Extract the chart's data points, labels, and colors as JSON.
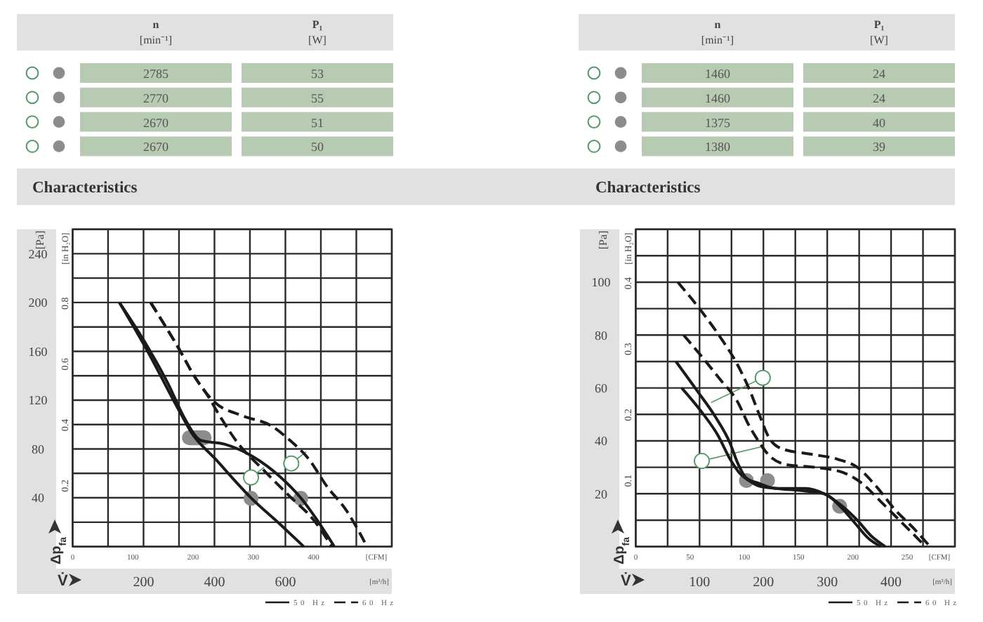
{
  "chart_data": [
    {
      "type": "other",
      "categories": [
        "n [min⁻¹]",
        "P₁ [W]"
      ],
      "annotations": [
        "2785",
        "53",
        "2770",
        "55",
        "2670",
        "51",
        "2670",
        "50"
      ]
    },
    {
      "type": "other",
      "categories": [
        "n [min⁻¹]",
        "P₁ [W]"
      ],
      "annotations": [
        "1460",
        "24",
        "1460",
        "24",
        "1375",
        "40",
        "1380",
        "39"
      ]
    },
    {
      "type": "line",
      "title": "Characteristics",
      "xlabel": "[m³/h]",
      "x2label": "[CFM]",
      "ylabel": "[Pa]",
      "y2label": "[in H₂O]",
      "annotations": [
        "Δp$_{fa}$",
        "V̇"
      ],
      "series": [
        {
          "name": "50 Hz",
          "color": "#1a1a1a",
          "line_style": "solid",
          "x": [
            132,
            204,
            303,
            336,
            402,
            503,
            586,
            652
          ],
          "values": [
            200,
            164,
            110,
            93,
            72,
            40,
            18,
            0
          ]
        },
        {
          "color": "#1a1a1a",
          "line_style": "solid",
          "x": [
            132,
            211,
            270,
            316,
            362,
            428,
            507,
            586,
            643,
            705,
            738
          ],
          "values": [
            200,
            164,
            133,
            105,
            87,
            84,
            74,
            57,
            40,
            15,
            0
          ]
        },
        {
          "name": "60 Hz",
          "color": "#1a1a1a",
          "line_style": "dashed",
          "x": [
            220,
            296,
            349,
            376,
            415,
            468,
            534,
            613,
            679,
            731
          ],
          "values": [
            200,
            164,
            137,
            126,
            107,
            84,
            64,
            41,
            22,
            0
          ]
        },
        {
          "color": "#1a1a1a",
          "line_style": "dashed",
          "x": [
            220,
            296,
            349,
            376,
            402,
            481,
            560,
            613,
            665,
            718,
            771,
            810,
            830
          ],
          "values": [
            200,
            164,
            137,
            126,
            118,
            107,
            99,
            87,
            72,
            49,
            30,
            11,
            0
          ]
        }
      ],
      "xlim": [
        0,
        900
      ],
      "xticks": [
        {
          "value": 0,
          "label": null
        },
        {
          "value": 100,
          "label": null
        },
        200,
        {
          "value": 300,
          "label": null
        },
        400,
        {
          "value": 500,
          "label": null
        },
        600,
        {
          "value": 700,
          "label": null
        },
        {
          "value": 800,
          "label": null
        },
        {
          "value": 900,
          "label": null
        }
      ],
      "x2lim": [
        0,
        530
      ],
      "x2ticks": [
        0,
        100,
        200,
        300,
        400
      ],
      "ylim": [
        0,
        260
      ],
      "yticks": [
        {
          "value": 0,
          "label": null
        },
        {
          "value": 20,
          "label": null
        },
        40,
        {
          "value": 60,
          "label": null
        },
        80,
        {
          "value": 100,
          "label": null
        },
        120,
        {
          "value": 140,
          "label": null
        },
        160,
        {
          "value": 180,
          "label": null
        },
        200,
        {
          "value": 220,
          "label": null
        },
        240,
        {
          "value": 260,
          "label": null
        }
      ],
      "y2lim": [
        0,
        1.044
      ],
      "y2ticks": [
        0.2,
        0.4,
        0.6,
        0.8
      ],
      "grid": true,
      "legend": "bottom right"
    },
    {
      "type": "line",
      "title": "Characteristics",
      "xlabel": "[m³/h]",
      "x2label": "[CFM]",
      "ylabel": "[Pa]",
      "y2label": "[in H₂O]",
      "annotations": [
        "Δp$_{fa}$",
        "V̇"
      ],
      "series": [
        {
          "name": "50 Hz",
          "color": "#1a1a1a",
          "line_style": "solid",
          "x": [
            63,
            96,
            125,
            148,
            159,
            173,
            192,
            221,
            266,
            295,
            325,
            347,
            369,
            391
          ],
          "values": [
            70,
            59,
            49,
            39,
            32,
            26,
            24,
            22,
            22,
            20,
            15,
            10,
            4,
            0
          ]
        },
        {
          "color": "#1a1a1a",
          "line_style": "solid",
          "x": [
            72,
            103,
            129,
            148,
            162,
            177,
            192,
            221,
            266,
            295,
            325,
            343,
            365,
            384
          ],
          "values": [
            60,
            51,
            42,
            33,
            28,
            25,
            23,
            22,
            21,
            20,
            14,
            9,
            3,
            0
          ]
        },
        {
          "name": "60 Hz",
          "color": "#1a1a1a",
          "line_style": "dashed",
          "x": [
            66,
            103,
            133,
            159,
            177,
            195,
            207,
            229,
            273,
            317,
            347,
            376,
            406,
            435,
            461
          ],
          "values": [
            100,
            89,
            79,
            69,
            60,
            49,
            42,
            37,
            35,
            33,
            30,
            23,
            14,
            7,
            0
          ]
        },
        {
          "color": "#1a1a1a",
          "line_style": "dashed",
          "x": [
            75,
            103,
            133,
            159,
            177,
            192,
            207,
            236,
            280,
            325,
            354,
            384,
            413,
            446,
            454
          ],
          "values": [
            80,
            72,
            63,
            55,
            46,
            40,
            35,
            31,
            30,
            28,
            24,
            17,
            10,
            2,
            0
          ]
        }
      ],
      "xlim": [
        0,
        500
      ],
      "xticks": [
        {
          "value": 0,
          "label": null
        },
        {
          "value": 50,
          "label": null
        },
        100,
        {
          "value": 150,
          "label": null
        },
        200,
        {
          "value": 250,
          "label": null
        },
        300,
        {
          "value": 350,
          "label": null
        },
        400,
        {
          "value": 450,
          "label": null
        },
        {
          "value": 500,
          "label": null
        }
      ],
      "x2lim": [
        0,
        294
      ],
      "x2ticks": [
        0,
        50,
        100,
        150,
        200,
        250
      ],
      "ylim": [
        0,
        120
      ],
      "yticks": [
        {
          "value": 0,
          "label": null
        },
        {
          "value": 10,
          "label": null
        },
        20,
        {
          "value": 30,
          "label": null
        },
        40,
        {
          "value": 50,
          "label": null
        },
        60,
        {
          "value": 70,
          "label": null
        },
        80,
        {
          "value": 90,
          "label": null
        },
        100,
        {
          "value": 110,
          "label": null
        },
        {
          "value": 120,
          "label": null
        }
      ],
      "y2lim": [
        0,
        0.482
      ],
      "y2ticks": [
        0.1,
        0.2,
        0.3,
        0.4
      ],
      "grid": true,
      "legend": "bottom right"
    }
  ]
}
